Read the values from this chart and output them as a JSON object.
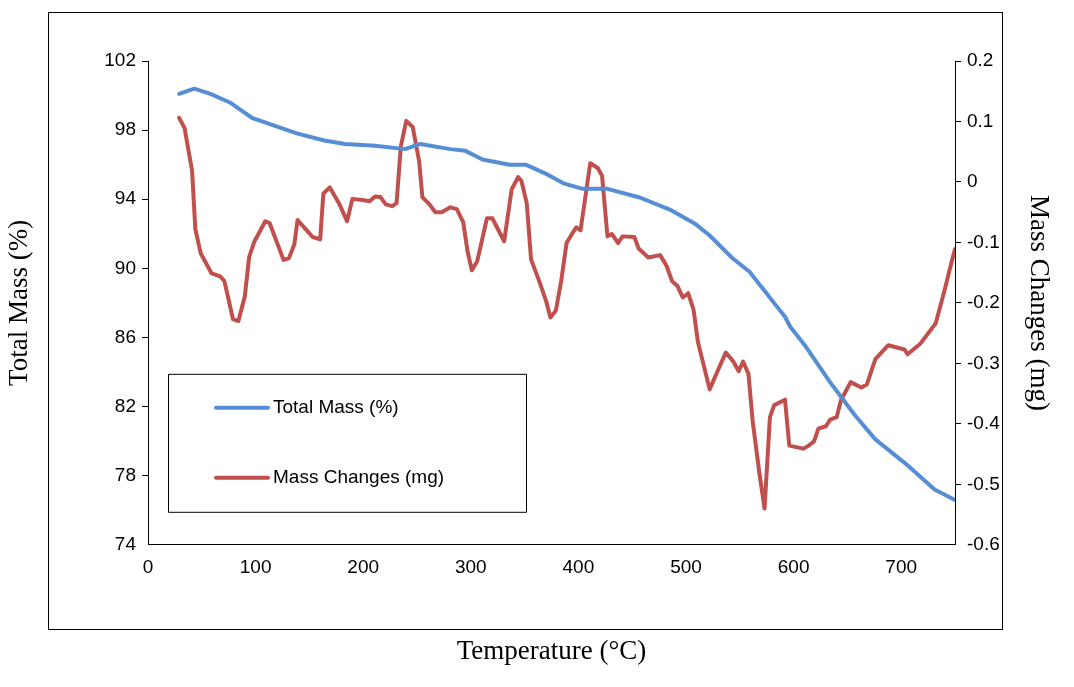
{
  "chart_data": {
    "type": "line",
    "xlabel": "Temperature (°C)",
    "ylabel": "Total Mass (%)",
    "y2label": "Mass Changes (mg)",
    "xlim": [
      0,
      750
    ],
    "xticks": [
      0,
      100,
      200,
      300,
      400,
      500,
      600,
      700
    ],
    "ylim": [
      74,
      102
    ],
    "yticks": [
      74,
      78,
      82,
      86,
      90,
      94,
      98,
      102
    ],
    "y2lim": [
      -0.6,
      0.2
    ],
    "y2ticks": [
      -0.6,
      -0.5,
      -0.4,
      -0.3,
      -0.2,
      -0.1,
      0,
      0.1,
      0.2
    ],
    "grid": false,
    "legend": "bottom left",
    "marker": "none",
    "line_style": "solid",
    "series": [
      {
        "name": "Total Mass (%)",
        "color": "#558ed5",
        "x": [
          29,
          43,
          58,
          76,
          90,
          97,
          106,
          120,
          139,
          164,
          183,
          211,
          239,
          253,
          281,
          295,
          311,
          336,
          351,
          369,
          387,
          404,
          427,
          457,
          485,
          508,
          522,
          543,
          559,
          573,
          583,
          592,
          597,
          611,
          634,
          657,
          676,
          704,
          731,
          750
        ],
        "values": [
          100.1,
          100.4,
          100.1,
          99.6,
          99.0,
          98.7,
          98.5,
          98.2,
          97.8,
          97.4,
          97.2,
          97.1,
          96.9,
          97.2,
          96.9,
          96.8,
          96.3,
          96.0,
          96.0,
          95.5,
          94.9,
          94.6,
          94.6,
          94.1,
          93.4,
          92.6,
          91.9,
          90.6,
          89.8,
          88.7,
          87.9,
          87.2,
          86.6,
          85.5,
          83.4,
          81.5,
          80.1,
          78.7,
          77.2,
          76.6
        ]
      },
      {
        "name": "Mass Changes (mg)",
        "color": "#c0504d",
        "axis": "y2",
        "x": [
          29,
          34,
          41,
          44,
          49,
          59,
          67,
          71,
          79,
          84,
          90,
          94,
          99,
          109,
          113,
          126,
          131,
          136,
          139,
          148,
          153,
          160,
          163,
          169,
          178,
          185,
          190,
          199,
          206,
          211,
          216,
          221,
          227,
          231,
          235,
          240,
          246,
          252,
          255,
          262,
          267,
          273,
          281,
          287,
          293,
          297,
          301,
          306,
          315,
          320,
          331,
          338,
          344,
          347,
          352,
          356,
          364,
          370,
          374,
          379,
          384,
          389,
          394,
          398,
          402,
          411,
          418,
          422,
          427,
          431,
          437,
          441,
          452,
          456,
          465,
          476,
          482,
          487,
          492,
          497,
          502,
          507,
          511,
          516,
          522,
          530,
          537,
          544,
          549,
          553,
          558,
          562,
          568,
          573,
          578,
          582,
          592,
          596,
          609,
          614,
          619,
          623,
          630,
          634,
          640,
          644,
          653,
          663,
          668,
          676,
          688,
          703,
          706,
          718,
          732,
          740,
          747,
          750
        ],
        "values": [
          0.106,
          0.089,
          0.018,
          -0.078,
          -0.118,
          -0.151,
          -0.156,
          -0.164,
          -0.227,
          -0.23,
          -0.189,
          -0.124,
          -0.098,
          -0.065,
          -0.068,
          -0.129,
          -0.126,
          -0.103,
          -0.063,
          -0.081,
          -0.091,
          -0.095,
          -0.019,
          -0.009,
          -0.037,
          -0.065,
          -0.028,
          -0.03,
          -0.032,
          -0.024,
          -0.025,
          -0.037,
          -0.04,
          -0.035,
          0.059,
          0.101,
          0.091,
          0.034,
          -0.025,
          -0.038,
          -0.05,
          -0.05,
          -0.042,
          -0.045,
          -0.067,
          -0.115,
          -0.146,
          -0.131,
          -0.06,
          -0.06,
          -0.098,
          -0.012,
          0.008,
          0.002,
          -0.035,
          -0.128,
          -0.166,
          -0.197,
          -0.224,
          -0.213,
          -0.164,
          -0.101,
          -0.086,
          -0.075,
          -0.08,
          0.031,
          0.023,
          0.01,
          -0.09,
          -0.086,
          -0.101,
          -0.09,
          -0.091,
          -0.11,
          -0.125,
          -0.121,
          -0.139,
          -0.164,
          -0.172,
          -0.191,
          -0.184,
          -0.211,
          -0.264,
          -0.3,
          -0.343,
          -0.31,
          -0.282,
          -0.297,
          -0.313,
          -0.297,
          -0.317,
          -0.396,
          -0.479,
          -0.54,
          -0.389,
          -0.369,
          -0.36,
          -0.436,
          -0.441,
          -0.436,
          -0.429,
          -0.408,
          -0.404,
          -0.393,
          -0.389,
          -0.361,
          -0.331,
          -0.34,
          -0.335,
          -0.293,
          -0.27,
          -0.277,
          -0.285,
          -0.267,
          -0.234,
          -0.181,
          -0.131,
          -0.111
        ]
      }
    ]
  }
}
